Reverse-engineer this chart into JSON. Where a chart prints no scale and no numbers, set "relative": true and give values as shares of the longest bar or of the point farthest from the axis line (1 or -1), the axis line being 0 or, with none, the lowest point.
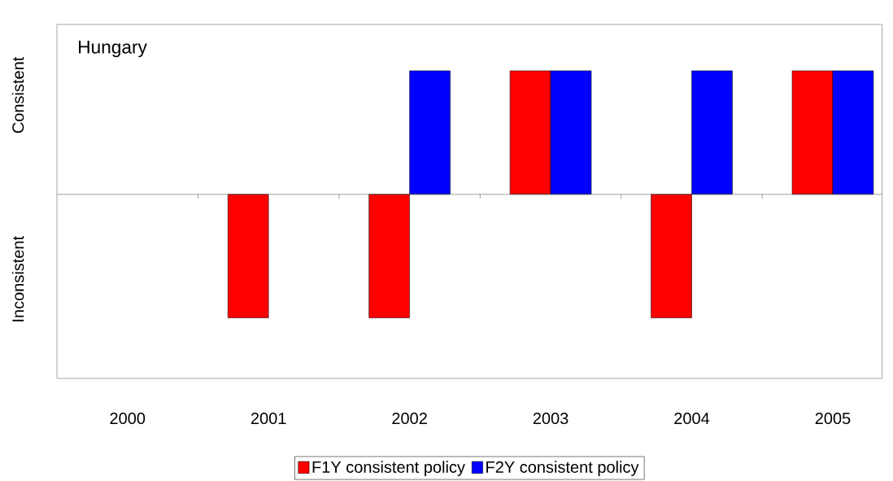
{
  "chart_data": {
    "type": "bar",
    "title": "Hungary",
    "relative": true,
    "categories": [
      "2000",
      "2001",
      "2002",
      "2003",
      "2004",
      "2005"
    ],
    "series": [
      {
        "name": "F1Y consistent policy",
        "color": "#ff0000",
        "values": [
          null,
          -1,
          -1,
          1,
          -1,
          1
        ]
      },
      {
        "name": "F2Y consistent policy",
        "color": "#0000ff",
        "values": [
          null,
          null,
          1,
          1,
          1,
          1
        ]
      }
    ],
    "annotations": [
      "Consistent",
      "Inconsistent"
    ],
    "legend": "bottom",
    "grid": false
  }
}
